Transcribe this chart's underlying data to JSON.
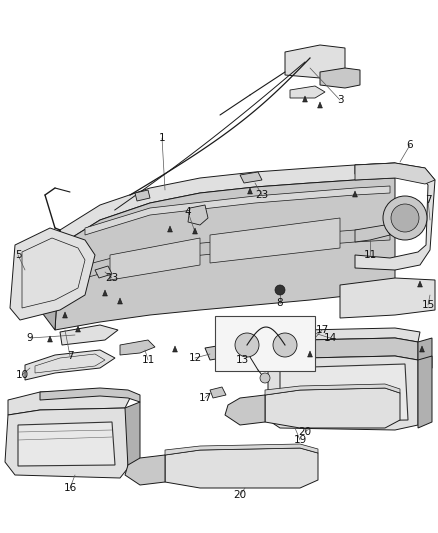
{
  "background_color": "#ffffff",
  "figsize": [
    4.38,
    5.33
  ],
  "dpi": 100,
  "lc": "#1a1a1a",
  "lw": 0.7,
  "fill_light": "#e0e0e0",
  "fill_mid": "#c8c8c8",
  "fill_dark": "#b0b0b0",
  "label_fs": 7.5,
  "callout_lc": "#555555",
  "callout_lw": 0.5
}
